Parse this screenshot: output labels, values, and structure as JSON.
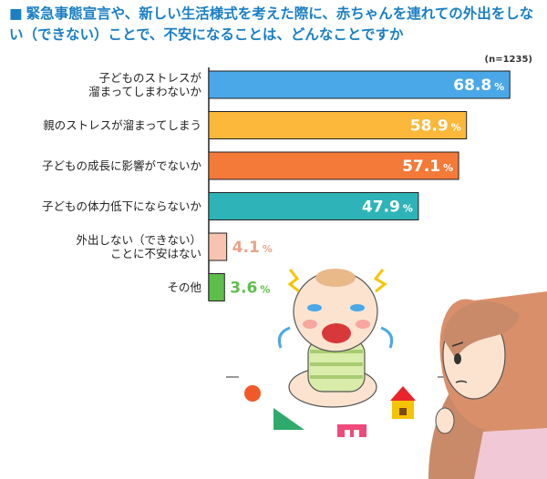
{
  "title": "緊急事態宣言や、新しい生活様式を考えた際に、赤ちゃんを連れての外出をしない（できない）ことで、不安になることは、どんなことですか",
  "note": "(n=1235)",
  "chart_data": {
    "type": "bar",
    "orientation": "horizontal",
    "title": "緊急事態宣言や、新しい生活様式を考えた際に、赤ちゃんを連れての外出をしない（できない）ことで、不安になることは、どんなことですか",
    "note": "(n=1235)",
    "categories": [
      [
        "子どものストレスが",
        "溜まってしまわないか"
      ],
      [
        "親のストレスが溜まってしまう"
      ],
      [
        "子どもの成長に影響がでないか"
      ],
      [
        "子どもの体力低下にならないか"
      ],
      [
        "外出しない（できない）",
        "ことに不安はない"
      ],
      [
        "その他"
      ]
    ],
    "values": [
      68.8,
      58.9,
      57.1,
      47.9,
      4.1,
      3.6
    ],
    "value_unit": "%",
    "xlim": [
      0,
      75
    ],
    "colors": [
      "#4aa8e8",
      "#fbb83a",
      "#f47a3a",
      "#2eb4b8",
      "#f8c4b0",
      "#5dbf4a"
    ],
    "label_colors": [
      "#ffffff",
      "#ffffff",
      "#ffffff",
      "#ffffff",
      "#e8a48a",
      "#5dbf4a"
    ],
    "grid": false,
    "legend": "none"
  }
}
